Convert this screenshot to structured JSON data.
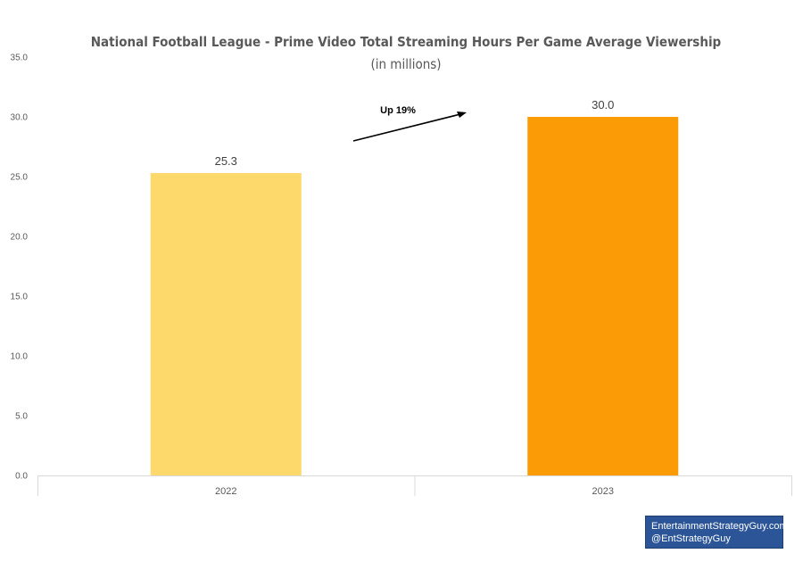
{
  "chart_data": {
    "type": "bar",
    "title": "National Football League - Prime Video Total Streaming Hours Per Game Average Viewership",
    "subtitle": "(in millions)",
    "categories": [
      "2022",
      "2023"
    ],
    "values": [
      25.3,
      30.0
    ],
    "value_labels": [
      "25.3",
      "30.0"
    ],
    "colors": [
      "#fdd96b",
      "#fb9b05"
    ],
    "ylim": [
      0,
      35
    ],
    "yticks": [
      "0.0",
      "5.0",
      "10.0",
      "15.0",
      "20.0",
      "25.0",
      "30.0",
      "35.0"
    ],
    "annotation": "Up 19%",
    "grid": false,
    "legend": "none"
  },
  "credit": {
    "line1": "EntertainmentStrategyGuy.com",
    "line2": "@EntStrategyGuy"
  }
}
